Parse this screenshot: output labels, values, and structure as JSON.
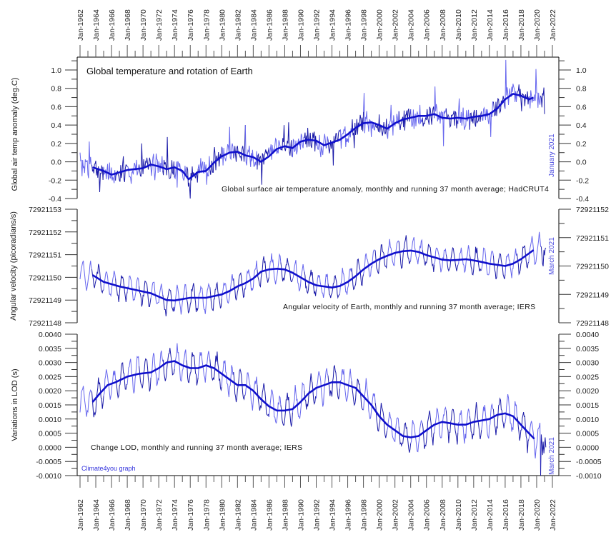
{
  "chart_data": {
    "type": "line",
    "title": "Global temperature and rotation of Earth",
    "credit": "Climate4you graph",
    "x_axis": {
      "type": "time",
      "range": [
        1961.7,
        2022.8
      ],
      "tick_labels": [
        "Jan-1962",
        "Jan-1964",
        "Jan-1966",
        "Jan-1968",
        "Jan-1970",
        "Jan-1972",
        "Jan-1974",
        "Jan-1976",
        "Jan-1978",
        "Jan-1980",
        "Jan-1982",
        "Jan-1984",
        "Jan-1986",
        "Jan-1988",
        "Jan-1990",
        "Jan-1992",
        "Jan-1994",
        "Jan-1996",
        "Jan-1998",
        "Jan-2000",
        "Jan-2002",
        "Jan-2004",
        "Jan-2006",
        "Jan-2008",
        "Jan-2010",
        "Jan-2012",
        "Jan-2014",
        "Jan-2016",
        "Jan-2018",
        "Jan-2020",
        "Jan-2022"
      ],
      "tick_years": [
        1962,
        1964,
        1966,
        1968,
        1970,
        1972,
        1974,
        1976,
        1978,
        1980,
        1982,
        1984,
        1986,
        1988,
        1990,
        1992,
        1994,
        1996,
        1998,
        2000,
        2002,
        2004,
        2006,
        2008,
        2010,
        2012,
        2014,
        2016,
        2018,
        2020,
        2022
      ],
      "minor_tick_step_years": 1
    },
    "colors": {
      "monthly_light": "#6666ee",
      "monthly_dark": "#1a1aa8",
      "running_avg": "#1010cc",
      "axis": "#000000",
      "date_note": "#4a4ae0"
    },
    "panels": [
      {
        "id": "temperature",
        "ylabel": "Global air temp anomaly (deg.C)",
        "ylim": [
          -0.4,
          1.13
        ],
        "left_ticks": [
          "1.0",
          "0.8",
          "0.6",
          "0.4",
          "0.2",
          "0.0",
          "-0.2",
          "-0.4"
        ],
        "left_tick_values": [
          1.0,
          0.8,
          0.6,
          0.4,
          0.2,
          0.0,
          -0.2,
          -0.4
        ],
        "right_ticks": [
          "1.0",
          "0.8",
          "0.6",
          "0.4",
          "0.2",
          "0.0",
          "-0.2",
          "-0.4"
        ],
        "right_tick_values": [
          1.0,
          0.8,
          0.6,
          0.4,
          0.2,
          0.0,
          -0.2,
          -0.4
        ],
        "minor_step": 0.1,
        "caption": "Global surface air temperature anomaly, monthly and running 37 month average; HadCRUT4",
        "date_note": "January 2021",
        "monthly_end": 2021.0,
        "monthly_noise": 0.11,
        "running_avg": {
          "x": [
            1963.6,
            1965,
            1966,
            1968,
            1970,
            1971,
            1972,
            1973,
            1974,
            1975,
            1975.8,
            1977,
            1978,
            1979,
            1980,
            1981,
            1982,
            1983,
            1984,
            1985,
            1986,
            1987,
            1988,
            1989,
            1990,
            1991,
            1992,
            1993,
            1994,
            1995,
            1996,
            1997,
            1998,
            1999,
            2000,
            2001,
            2002,
            2003,
            2004,
            2005,
            2006,
            2007,
            2008,
            2009,
            2010,
            2011,
            2012,
            2013,
            2014,
            2015,
            2016,
            2017,
            2018,
            2019,
            2019.6
          ],
          "y": [
            -0.06,
            -0.1,
            -0.14,
            -0.09,
            -0.07,
            -0.03,
            -0.05,
            -0.08,
            -0.06,
            -0.1,
            -0.19,
            -0.11,
            -0.1,
            -0.01,
            0.06,
            0.1,
            0.11,
            0.07,
            0.05,
            0.0,
            0.06,
            0.14,
            0.17,
            0.15,
            0.22,
            0.24,
            0.23,
            0.18,
            0.21,
            0.24,
            0.3,
            0.37,
            0.42,
            0.43,
            0.4,
            0.36,
            0.42,
            0.46,
            0.48,
            0.5,
            0.5,
            0.52,
            0.48,
            0.47,
            0.48,
            0.47,
            0.49,
            0.5,
            0.52,
            0.58,
            0.68,
            0.74,
            0.72,
            0.68,
            0.7
          ]
        },
        "monthly_points": [
          [
            1962.0,
            0.1
          ],
          [
            1962.3,
            0.02
          ],
          [
            1963.2,
            0.22
          ],
          [
            1964.5,
            -0.33
          ],
          [
            1965.7,
            -0.18
          ],
          [
            1967.5,
            0.06
          ],
          [
            1968.5,
            -0.24
          ],
          [
            1969.8,
            0.2
          ],
          [
            1971.5,
            -0.2
          ],
          [
            1973.1,
            0.27
          ],
          [
            1974.3,
            -0.28
          ],
          [
            1976.0,
            -0.4
          ],
          [
            1977.3,
            0.04
          ],
          [
            1978.1,
            -0.25
          ],
          [
            1979.1,
            0.16
          ],
          [
            1981.0,
            0.38
          ],
          [
            1983.0,
            0.4
          ],
          [
            1984.1,
            -0.05
          ],
          [
            1985.1,
            -0.25
          ],
          [
            1987.9,
            0.4
          ],
          [
            1988.5,
            0.43
          ],
          [
            1989.0,
            0.05
          ],
          [
            1990.9,
            0.37
          ],
          [
            1992.6,
            0.05
          ],
          [
            1994.2,
            -0.04
          ],
          [
            1996.8,
            0.15
          ],
          [
            1998.1,
            0.75
          ],
          [
            1999.0,
            0.27
          ],
          [
            2001.5,
            0.62
          ],
          [
            2002.5,
            0.55
          ],
          [
            2004.5,
            0.45
          ],
          [
            2005.2,
            0.62
          ],
          [
            2007.1,
            0.82
          ],
          [
            2008.2,
            0.17
          ],
          [
            2010.2,
            0.69
          ],
          [
            2011.5,
            0.35
          ],
          [
            2013.0,
            0.55
          ],
          [
            2014.2,
            0.27
          ],
          [
            2015.0,
            0.6
          ],
          [
            2016.1,
            1.11
          ],
          [
            2017.0,
            0.85
          ],
          [
            2018.1,
            0.55
          ],
          [
            2019.9,
            1.01
          ],
          [
            2020.5,
            0.72
          ],
          [
            2021.0,
            0.52
          ]
        ]
      },
      {
        "id": "angular-velocity",
        "ylabel": "Angular velocity (picoradians/s)",
        "ylim": [
          72921148,
          72921153
        ],
        "left_ticks": [
          "72921153",
          "72921152",
          "72921151",
          "72921150",
          "72921149",
          "72921148"
        ],
        "left_tick_values": [
          72921153,
          72921152,
          72921151,
          72921150,
          72921149,
          72921148
        ],
        "right_ylim": [
          72921148,
          72921152
        ],
        "right_ticks": [
          "72921152",
          "72921151",
          "72921150",
          "72921149",
          "72921148"
        ],
        "right_tick_values": [
          72921152,
          72921151,
          72921150,
          72921149,
          72921148
        ],
        "minor_step": 0.5,
        "caption": "Angular velocity of Earth, monthly and running 37 month average; IERS",
        "date_note": "March 2021",
        "monthly_end": 2021.2,
        "annual_amplitude": 0.55,
        "running_avg": {
          "x": [
            1963.6,
            1965,
            1967,
            1969,
            1971,
            1972,
            1973,
            1974,
            1976,
            1978,
            1980,
            1981,
            1982,
            1983,
            1984,
            1985,
            1986,
            1987,
            1988,
            1989,
            1990,
            1991,
            1992,
            1993,
            1994,
            1995,
            1996,
            1997,
            1998,
            1999,
            2000,
            2001,
            2002,
            2003,
            2004,
            2005,
            2006,
            2007,
            2008,
            2009,
            2010,
            2011,
            2012,
            2013,
            2014,
            2015,
            2016,
            2017,
            2018,
            2019,
            2019.6
          ],
          "y": [
            72921150.1,
            72921149.8,
            72921149.6,
            72921149.45,
            72921149.3,
            72921149.15,
            72921149.0,
            72921148.98,
            72921149.1,
            72921149.1,
            72921149.25,
            72921149.4,
            72921149.6,
            72921149.75,
            72921149.95,
            72921150.25,
            72921150.35,
            72921150.38,
            72921150.35,
            72921150.2,
            72921150.0,
            72921149.8,
            72921149.65,
            72921149.6,
            72921149.55,
            72921149.62,
            72921149.8,
            72921150.05,
            72921150.35,
            72921150.6,
            72921150.8,
            72921150.95,
            72921151.08,
            72921151.15,
            72921151.18,
            72921151.12,
            72921150.98,
            72921150.88,
            72921150.78,
            72921150.75,
            72921150.77,
            72921150.8,
            72921150.75,
            72921150.68,
            72921150.6,
            72921150.55,
            72921150.5,
            72921150.6,
            72921150.8,
            72921151.05,
            72921151.2
          ]
        },
        "monthly_points": [
          [
            2020.3,
            72921152.0
          ],
          [
            2020.9,
            72921151.2
          ],
          [
            2021.2,
            72921151.3
          ]
        ]
      },
      {
        "id": "lod",
        "ylabel": "Variations in LOD (s)",
        "ylim": [
          -0.001,
          0.004
        ],
        "left_ticks": [
          "0.0040",
          "0.0035",
          "0.0030",
          "0.0025",
          "0.0020",
          "0.0015",
          "0.0010",
          "0.0005",
          "0.0000",
          "-0.0005",
          "-0.0010"
        ],
        "left_tick_values": [
          0.004,
          0.0035,
          0.003,
          0.0025,
          0.002,
          0.0015,
          0.001,
          0.0005,
          0.0,
          -0.0005,
          -0.001
        ],
        "right_ticks": [
          "0.0040",
          "0.0035",
          "0.0030",
          "0.0025",
          "0.0020",
          "0.0015",
          "0.0010",
          "0.0005",
          "0.0000",
          "-0.0005",
          "-0.0010"
        ],
        "right_tick_values": [
          0.004,
          0.0035,
          0.003,
          0.0025,
          0.002,
          0.0015,
          0.001,
          0.0005,
          0.0,
          -0.0005,
          -0.001
        ],
        "minor_step": 0.00025,
        "caption": "Change LOD, monthly and running 37 month average; IERS",
        "date_note": "March 2021",
        "monthly_end": 2021.2,
        "annual_amplitude": 0.00055,
        "running_avg": {
          "x": [
            1963.6,
            1964.5,
            1965.5,
            1966.5,
            1968,
            1969.5,
            1971,
            1972,
            1973,
            1974,
            1975,
            1976,
            1977,
            1978,
            1979,
            1980,
            1981,
            1982,
            1983,
            1984,
            1985,
            1986,
            1987,
            1988,
            1989,
            1990,
            1991,
            1992,
            1993,
            1994,
            1995,
            1996,
            1997,
            1998,
            1999,
            2000,
            2001,
            2002,
            2003,
            2004,
            2005,
            2006,
            2007,
            2008,
            2009,
            2010,
            2011,
            2012,
            2013,
            2014,
            2015,
            2016,
            2017,
            2018,
            2019,
            2019.7
          ],
          "y": [
            0.0016,
            0.0019,
            0.0022,
            0.0023,
            0.0025,
            0.0026,
            0.00265,
            0.0028,
            0.003,
            0.00305,
            0.0029,
            0.0028,
            0.0028,
            0.0029,
            0.0028,
            0.0026,
            0.0024,
            0.0022,
            0.0022,
            0.002,
            0.0017,
            0.00145,
            0.0013,
            0.0013,
            0.00135,
            0.0016,
            0.0019,
            0.0021,
            0.0022,
            0.0023,
            0.0023,
            0.0022,
            0.0021,
            0.0018,
            0.0015,
            0.0011,
            0.0008,
            0.0006,
            0.0004,
            0.00035,
            0.0004,
            0.0006,
            0.0008,
            0.0009,
            0.00085,
            0.0008,
            0.0008,
            0.0009,
            0.00095,
            0.001,
            0.00115,
            0.0012,
            0.0011,
            0.0008,
            0.0005,
            0.0003
          ]
        },
        "monthly_points": [
          [
            2020.5,
            -0.001
          ],
          [
            2020.8,
            0.0002
          ],
          [
            2021.2,
            0.0
          ]
        ]
      }
    ]
  }
}
